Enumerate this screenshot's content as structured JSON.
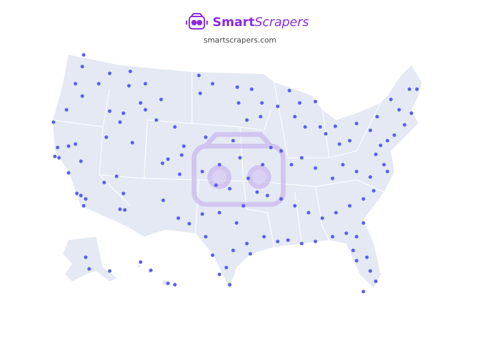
{
  "header": {
    "brand_bold": "Smart",
    "brand_italic": "Scrapers",
    "url": "smartscrapers.com"
  }
}
